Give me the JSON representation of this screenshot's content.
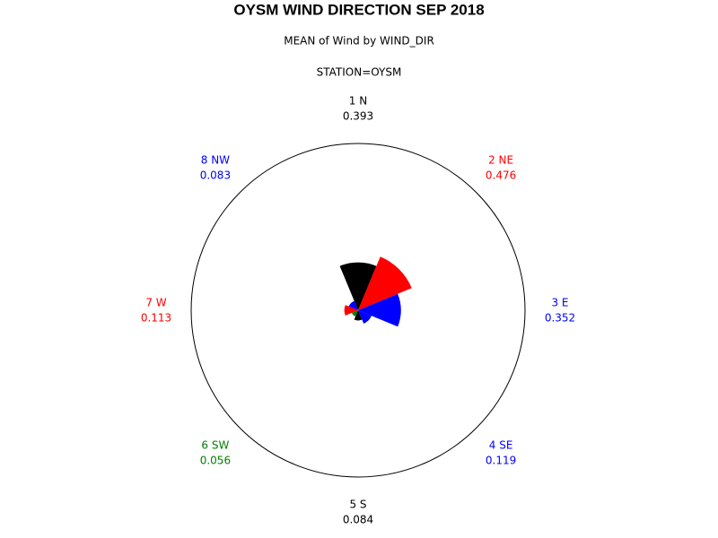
{
  "chart_data": {
    "type": "polar",
    "title": "OYSM WIND DIRECTION SEP 2018",
    "subtitles": [
      "MEAN of Wind by WIND_DIR",
      "STATION=OYSM"
    ],
    "categories": [
      "1 N",
      "2 NE",
      "3 E",
      "4 SE",
      "5 S",
      "6 SW",
      "7 W",
      "8 NW"
    ],
    "values": [
      0.393,
      0.476,
      0.352,
      0.119,
      0.084,
      0.056,
      0.113,
      0.083
    ],
    "colors": [
      "#000000",
      "#ff0000",
      "#0000ff",
      "#0000ff",
      "#000000",
      "#008000",
      "#ff0000",
      "#0000ff"
    ],
    "rlim": [
      0,
      1.37
    ]
  }
}
